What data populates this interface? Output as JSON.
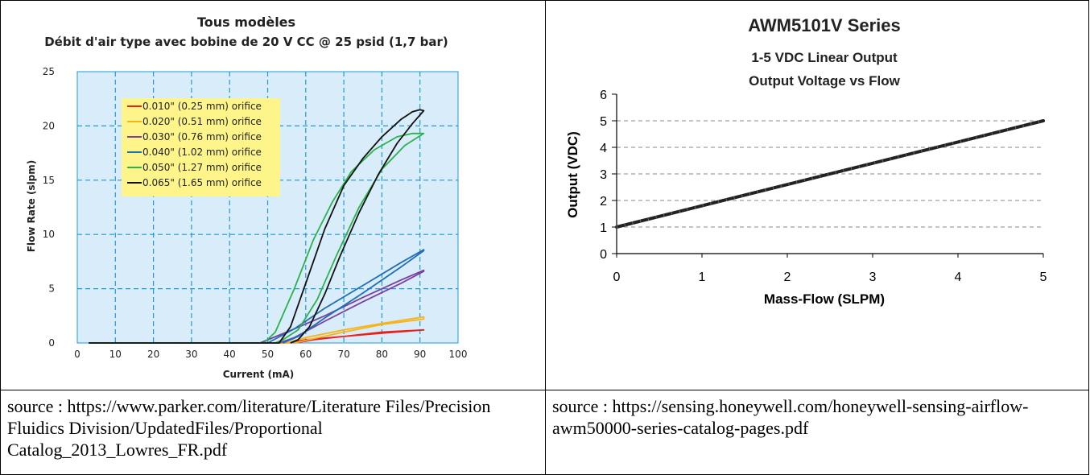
{
  "left_source": "source : https://www.parker.com/literature/Literature Files/Precision Fluidics Division/UpdatedFiles/Proportional Catalog_2013_Lowres_FR.pdf",
  "right_source": "source : https://sensing.honeywell.com/honeywell-sensing-airflow-awm50000-series-catalog-pages.pdf",
  "colors": {
    "plot_background": "#d9ecf9",
    "grid": "#1f9ad6",
    "legend_background": "#fef58a"
  },
  "chart_data": [
    {
      "type": "line",
      "title": "Tous modèles",
      "subtitle": "Débit d'air type avec bobine de 20 V CC @ 25 psid (1,7 bar)",
      "xlabel": "Current (mA)",
      "ylabel": "Flow Rate (slpm)",
      "xlim": [
        0,
        100
      ],
      "ylim": [
        0,
        25
      ],
      "xticks": [
        0,
        10,
        20,
        30,
        40,
        50,
        60,
        70,
        80,
        90,
        100
      ],
      "yticks": [
        0,
        5,
        10,
        15,
        20,
        25
      ],
      "grid": true,
      "legend_position": "top-left",
      "series": [
        {
          "name": "0.010\" (0.25 mm) orifice",
          "color": "#e8211c",
          "x": [
            3,
            55,
            60,
            70,
            80,
            91,
            91,
            80,
            70,
            62,
            57
          ],
          "y": [
            0,
            0,
            0.3,
            0.6,
            0.9,
            1.2,
            1.2,
            1.0,
            0.6,
            0.3,
            0
          ]
        },
        {
          "name": "0.020\" (0.51 mm) orifice",
          "color": "#f4b41a",
          "x": [
            3,
            55,
            60,
            70,
            80,
            91,
            91,
            80,
            70,
            62,
            57
          ],
          "y": [
            0,
            0,
            0.5,
            1.2,
            1.8,
            2.4,
            2.2,
            1.7,
            1.0,
            0.4,
            0
          ]
        },
        {
          "name": "0.030\" (0.76 mm) orifice",
          "color": "#7b3fa0",
          "x": [
            3,
            48,
            55,
            65,
            75,
            85,
            91,
            91,
            85,
            75,
            65,
            57,
            53
          ],
          "y": [
            0,
            0,
            1.0,
            2.5,
            4.2,
            5.8,
            6.7,
            6.6,
            5.5,
            3.8,
            2.0,
            0.5,
            0
          ]
        },
        {
          "name": "0.040\" (1.02 mm) orifice",
          "color": "#1f6fb5",
          "x": [
            3,
            50,
            57,
            65,
            75,
            85,
            91,
            91,
            85,
            75,
            65,
            58,
            54
          ],
          "y": [
            0,
            0,
            1.3,
            3.2,
            5.3,
            7.4,
            8.6,
            8.5,
            7.0,
            4.6,
            2.3,
            0.6,
            0
          ]
        },
        {
          "name": "0.050\" (1.27 mm) orifice",
          "color": "#2bb34b",
          "x": [
            3,
            49,
            52,
            57,
            62,
            67,
            72,
            78,
            84,
            88,
            91,
            91,
            86,
            80,
            74,
            68,
            63,
            58,
            54,
            52
          ],
          "y": [
            0,
            0,
            1.0,
            5.0,
            9.5,
            13.0,
            15.8,
            17.8,
            19.0,
            19.3,
            19.3,
            19.3,
            18.2,
            16.0,
            12.5,
            8.0,
            4.0,
            1.2,
            0.3,
            0
          ]
        },
        {
          "name": "0.065\" (1.65 mm) orifice",
          "color": "#111111",
          "x": [
            3,
            53,
            56,
            60,
            65,
            70,
            75,
            80,
            85,
            88,
            90,
            91,
            88,
            84,
            79,
            74,
            69,
            65,
            61,
            58,
            56
          ],
          "y": [
            0,
            0,
            1.5,
            5.5,
            10.5,
            14.5,
            17.0,
            19.0,
            20.6,
            21.3,
            21.5,
            21.4,
            20.2,
            18.4,
            15.5,
            12.0,
            8.0,
            4.5,
            1.5,
            0.3,
            0
          ]
        }
      ]
    },
    {
      "type": "line",
      "title": "AWM5101V Series",
      "subtitle": "1-5 VDC Linear Output",
      "subtitle2": "Output Voltage vs Flow",
      "xlabel": "Mass-Flow (SLPM)",
      "ylabel": "Output (VDC)",
      "xlim": [
        0,
        5
      ],
      "ylim": [
        0,
        6
      ],
      "xticks": [
        0,
        1,
        2,
        3,
        4,
        5
      ],
      "yticks": [
        0,
        1,
        2,
        3,
        4,
        5,
        6
      ],
      "grid": "horizontal dashed",
      "series": [
        {
          "color": "#222222",
          "x": [
            0,
            1,
            2,
            3,
            4,
            5
          ],
          "y": [
            1.0,
            1.8,
            2.6,
            3.4,
            4.2,
            5.0
          ]
        }
      ]
    }
  ]
}
